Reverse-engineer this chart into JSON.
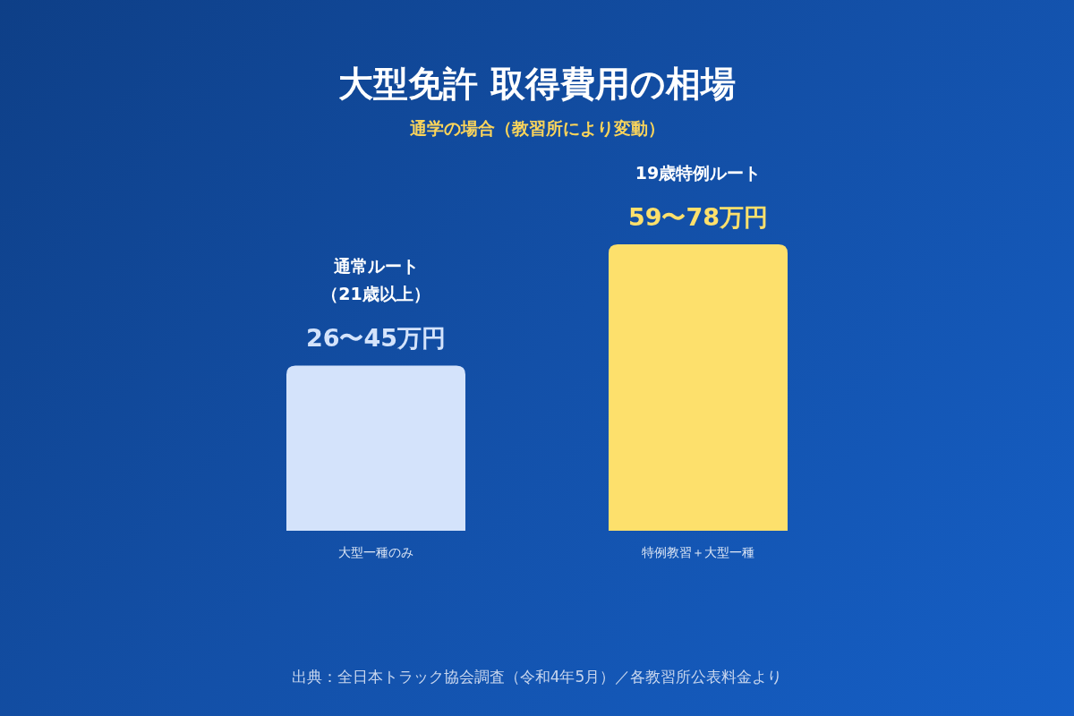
{
  "chart_data": {
    "type": "bar",
    "title": "大型免許 取得費用の相場",
    "subtitle": "通学の場合（教習所により変動）",
    "categories": [
      "大型一種のみ",
      "特例教習＋大型一種"
    ],
    "values": [
      45,
      78
    ],
    "colors": [
      "#d4e3fb",
      "#fde06c"
    ],
    "value_labels": [
      "26〜45万円",
      "59〜78万円"
    ],
    "annotations": [
      "通常ルート（21歳以上）",
      "19歳特例ルート",
      "出典：全日本トラック協会調査（令和4年5月）／各教習所公表料金より"
    ]
  }
}
